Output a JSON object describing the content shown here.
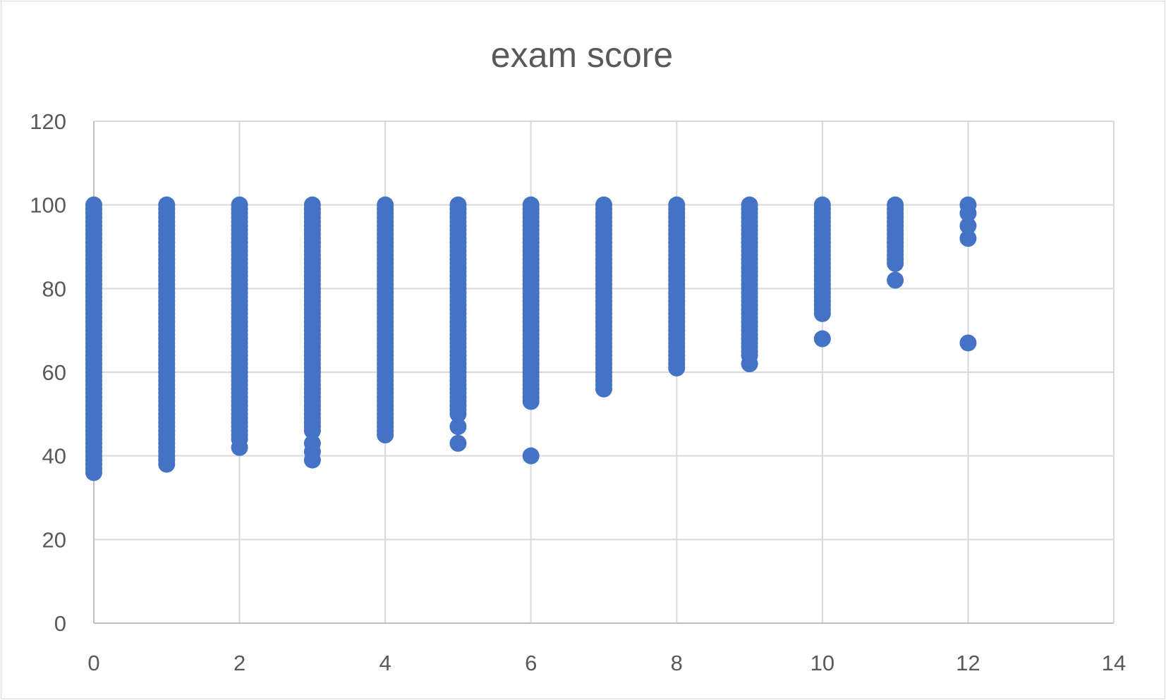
{
  "chart_data": {
    "type": "scatter",
    "title": "exam score",
    "xlabel": "",
    "ylabel": "",
    "xlim": [
      0,
      14
    ],
    "ylim": [
      0,
      120
    ],
    "x_ticks": [
      "0",
      "2",
      "4",
      "6",
      "8",
      "10",
      "12",
      "14"
    ],
    "y_ticks": [
      "0",
      "20",
      "40",
      "60",
      "80",
      "100",
      "120"
    ],
    "grid": true,
    "legend": "none",
    "marker_color": "#4472c4",
    "series": [
      {
        "points": [
          {
            "x": 0,
            "y_range": [
              38,
              100
            ]
          },
          {
            "x": 0,
            "y": 36
          },
          {
            "x": 0,
            "y": 37
          },
          {
            "x": 1,
            "y_range": [
              40,
              100
            ]
          },
          {
            "x": 1,
            "y": 38
          },
          {
            "x": 1,
            "y": 39
          },
          {
            "x": 2,
            "y_range": [
              44,
              100
            ]
          },
          {
            "x": 2,
            "y": 42
          },
          {
            "x": 3,
            "y_range": [
              46,
              100
            ]
          },
          {
            "x": 3,
            "y": 39
          },
          {
            "x": 3,
            "y": 41
          },
          {
            "x": 3,
            "y": 43
          },
          {
            "x": 4,
            "y_range": [
              45,
              100
            ]
          },
          {
            "x": 5,
            "y_range": [
              50,
              100
            ]
          },
          {
            "x": 5,
            "y": 47
          },
          {
            "x": 5,
            "y": 43
          },
          {
            "x": 6,
            "y_range": [
              53,
              100
            ]
          },
          {
            "x": 6,
            "y": 40
          },
          {
            "x": 7,
            "y_range": [
              56,
              100
            ]
          },
          {
            "x": 8,
            "y_range": [
              61,
              100
            ]
          },
          {
            "x": 9,
            "y_range": [
              64,
              100
            ]
          },
          {
            "x": 9,
            "y": 62
          },
          {
            "x": 10,
            "y_range": [
              74,
              100
            ]
          },
          {
            "x": 10,
            "y": 68
          },
          {
            "x": 11,
            "y_range": [
              86,
              100
            ]
          },
          {
            "x": 11,
            "y": 82
          },
          {
            "x": 12,
            "y": 100
          },
          {
            "x": 12,
            "y": 98
          },
          {
            "x": 12,
            "y": 95
          },
          {
            "x": 12,
            "y": 92
          },
          {
            "x": 12,
            "y": 67
          }
        ]
      }
    ]
  }
}
